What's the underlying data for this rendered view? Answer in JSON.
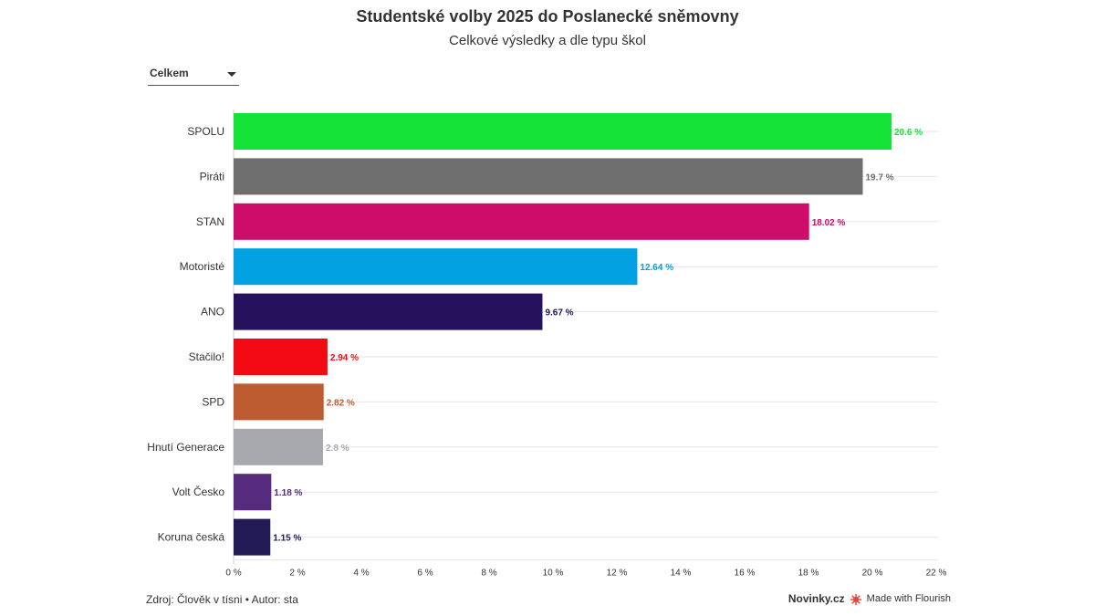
{
  "header": {
    "title": "Studentské volby 2025 do Poslanecké sněmovny",
    "subtitle": "Celkové výsledky a dle typu škol"
  },
  "filter": {
    "selected": "Celkem"
  },
  "chart_data": {
    "type": "bar",
    "orientation": "horizontal",
    "categories": [
      "SPOLU",
      "Piráti",
      "STAN",
      "Motoristé",
      "ANO",
      "Stačilo!",
      "SPD",
      "Hnutí Generace",
      "Volt Česko",
      "Koruna česká"
    ],
    "values": [
      20.6,
      19.7,
      18.02,
      12.64,
      9.67,
      2.94,
      2.82,
      2.8,
      1.18,
      1.15
    ],
    "value_labels": [
      "20.6 %",
      "19.7 %",
      "18.02 %",
      "12.64 %",
      "9.67 %",
      "2.94 %",
      "2.82 %",
      "2.8 %",
      "1.18 %",
      "1.15 %"
    ],
    "colors": [
      "#12e336",
      "#6e6e6e",
      "#cd0d69",
      "#00a0e1",
      "#26115e",
      "#f20a12",
      "#bd5b30",
      "#a7a9ae",
      "#562a7c",
      "#211a55"
    ],
    "xlim": [
      0,
      22
    ],
    "xticks": [
      0,
      2,
      4,
      6,
      8,
      10,
      12,
      14,
      16,
      18,
      20,
      22
    ],
    "xtick_labels": [
      "0 %",
      "2 %",
      "4 %",
      "6 %",
      "8 %",
      "10 %",
      "12 %",
      "14 %",
      "16 %",
      "18 %",
      "20 %",
      "22 %"
    ],
    "xlabel": "",
    "ylabel": "",
    "grid": true
  },
  "footer": {
    "source": "Zdroj: Člověk v tísni • Autor: sta",
    "brand": "Novinky.cz",
    "made_with": "Made with Flourish",
    "flourish_color": "#e8403a"
  }
}
